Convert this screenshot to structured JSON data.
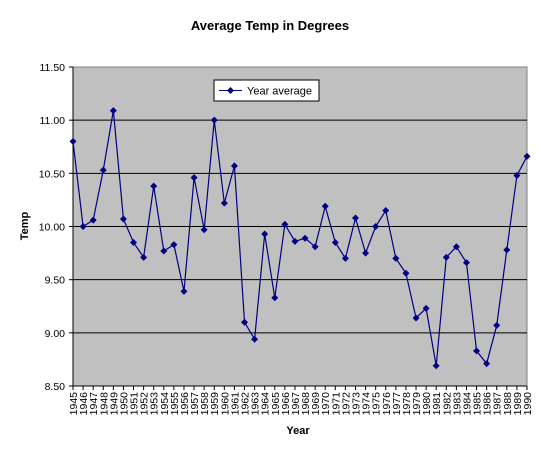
{
  "chart_data": {
    "type": "line",
    "title": "Average Temp in Degrees",
    "xlabel": "Year",
    "ylabel": "Temp",
    "ylim": [
      8.5,
      11.5
    ],
    "y_ticks": [
      "8.50",
      "9.00",
      "9.50",
      "10.00",
      "10.50",
      "11.00",
      "11.50"
    ],
    "grid": "horizontal",
    "legend_position": "top-left",
    "colors": {
      "series": "#000080",
      "plot_background": "#c0c0c0",
      "grid": "#000000"
    },
    "categories": [
      "1945",
      "1946",
      "1947",
      "1948",
      "1949",
      "1950",
      "1951",
      "1952",
      "1953",
      "1954",
      "1955",
      "1956",
      "1957",
      "1958",
      "1959",
      "1960",
      "1961",
      "1962",
      "1963",
      "1964",
      "1965",
      "1966",
      "1967",
      "1968",
      "1969",
      "1970",
      "1971",
      "1972",
      "1973",
      "1974",
      "1975",
      "1976",
      "1977",
      "1978",
      "1979",
      "1980",
      "1981",
      "1982",
      "1983",
      "1984",
      "1985",
      "1986",
      "1987",
      "1988",
      "1989",
      "1990"
    ],
    "series": [
      {
        "name": "Year average",
        "values": [
          10.8,
          10.0,
          10.06,
          10.53,
          11.09,
          10.07,
          9.85,
          9.71,
          10.38,
          9.77,
          9.83,
          9.39,
          10.46,
          9.97,
          11.0,
          10.22,
          10.57,
          9.1,
          8.94,
          9.93,
          9.33,
          10.02,
          9.86,
          9.89,
          9.81,
          10.19,
          9.85,
          9.7,
          10.08,
          9.75,
          10.0,
          10.15,
          9.7,
          9.56,
          9.14,
          9.23,
          8.69,
          9.71,
          9.81,
          9.66,
          8.83,
          8.71,
          9.07,
          9.78,
          10.48,
          10.66
        ]
      }
    ]
  }
}
